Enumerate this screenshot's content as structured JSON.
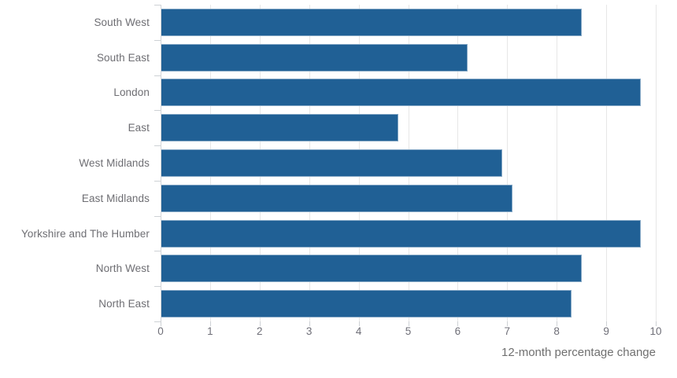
{
  "chart_data": {
    "type": "bar",
    "orientation": "horizontal",
    "title": "",
    "xlabel": "12-month percentage change",
    "ylabel": "",
    "categories": [
      "South West",
      "South East",
      "London",
      "East",
      "West Midlands",
      "East Midlands",
      "Yorkshire and The Humber",
      "North West",
      "North East"
    ],
    "values": [
      8.5,
      6.2,
      9.7,
      4.8,
      6.9,
      7.1,
      9.7,
      8.5,
      8.3
    ],
    "xlim": [
      0,
      10
    ],
    "x_ticks": [
      "0",
      "1",
      "2",
      "3",
      "4",
      "5",
      "6",
      "7",
      "8",
      "9",
      "10"
    ],
    "grid": "vertical-on",
    "legend": "none",
    "colors": {
      "bar": "#206095",
      "gridline": "#e7e7e7",
      "axis_line": "#d2d5d9",
      "tick_mark": "#cdd1d5",
      "tick_label": "#6f6f78",
      "category_label": "#6e6e73",
      "axis_title": "#707070",
      "background": "#ffffff"
    }
  }
}
